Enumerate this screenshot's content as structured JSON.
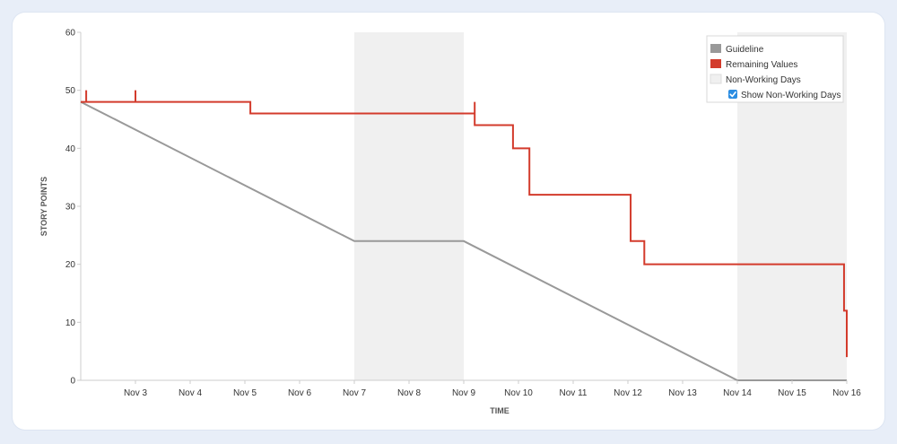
{
  "chart_data": {
    "type": "line",
    "xlabel": "TIME",
    "ylabel": "STORY POINTS",
    "ylim": [
      0,
      60
    ],
    "yticks": [
      0,
      10,
      20,
      30,
      40,
      50,
      60
    ],
    "xlim": [
      2.0,
      16.0
    ],
    "xtick_values": [
      3,
      4,
      5,
      6,
      7,
      8,
      9,
      10,
      11,
      12,
      13,
      14,
      15,
      16
    ],
    "xtick_labels": [
      "Nov 3",
      "Nov 4",
      "Nov 5",
      "Nov 6",
      "Nov 7",
      "Nov 8",
      "Nov 9",
      "Nov 10",
      "Nov 11",
      "Nov 12",
      "Nov 13",
      "Nov 14",
      "Nov 15",
      "Nov 16"
    ],
    "non_working_days": [
      [
        7.0,
        9.0
      ],
      [
        14.0,
        16.0
      ]
    ],
    "legend": {
      "placement": "top-right"
    },
    "series": [
      {
        "name": "Guideline",
        "color": "#999999",
        "points": [
          [
            2.0,
            48
          ],
          [
            7.0,
            24
          ],
          [
            9.0,
            24
          ],
          [
            14.0,
            0
          ],
          [
            16.0,
            0
          ]
        ]
      },
      {
        "name": "Remaining Values",
        "color": "#d33b2c",
        "step_path": [
          [
            2.0,
            48
          ],
          [
            2.1,
            48
          ],
          [
            2.1,
            50
          ],
          [
            2.1,
            48
          ],
          [
            3.0,
            48
          ],
          [
            3.0,
            50
          ],
          [
            3.0,
            48
          ],
          [
            5.1,
            48
          ],
          [
            5.1,
            46
          ],
          [
            9.2,
            46
          ],
          [
            9.2,
            48
          ],
          [
            9.2,
            44
          ],
          [
            9.9,
            44
          ],
          [
            9.9,
            40
          ],
          [
            10.2,
            40
          ],
          [
            10.2,
            32
          ],
          [
            12.05,
            32
          ],
          [
            12.05,
            24
          ],
          [
            12.3,
            24
          ],
          [
            12.3,
            20
          ],
          [
            15.95,
            20
          ],
          [
            15.95,
            12
          ],
          [
            16.0,
            12
          ],
          [
            16.0,
            4
          ]
        ]
      }
    ]
  },
  "legend": {
    "items": [
      {
        "label": "Guideline",
        "color": "#999999",
        "kind": "swatch"
      },
      {
        "label": "Remaining Values",
        "color": "#d33b2c",
        "kind": "swatch"
      },
      {
        "label": "Non-Working Days",
        "color": "#f0f0f0",
        "kind": "swatch"
      }
    ],
    "checkbox": {
      "label": "Show Non-Working Days",
      "checked": true,
      "color": "#2b8de2"
    }
  }
}
